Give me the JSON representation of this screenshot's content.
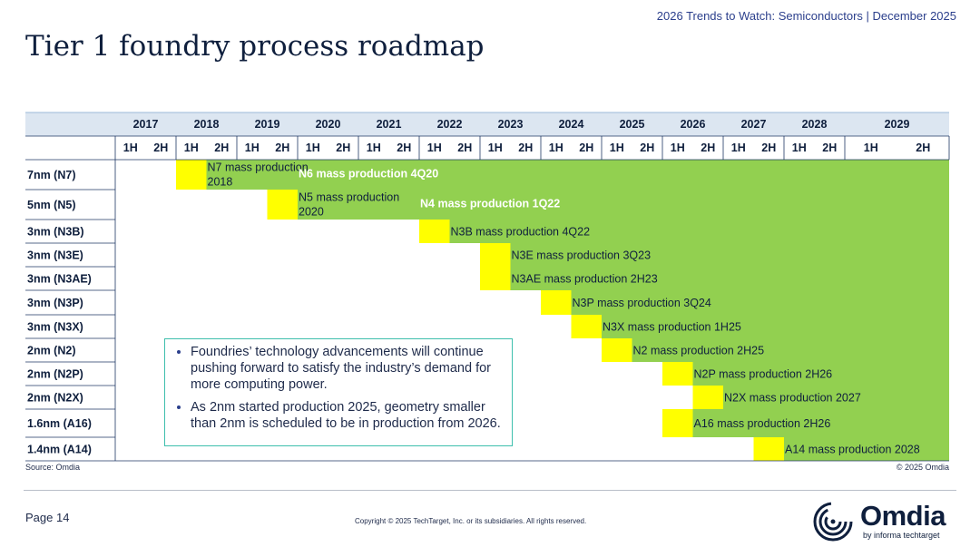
{
  "header": {
    "report_title": "2026 Trends to Watch: Semiconductors | December 2025",
    "slide_title": "Tier 1 foundry process roadmap"
  },
  "chart_data": {
    "type": "gantt",
    "title": "",
    "years": [
      "2017",
      "2018",
      "2019",
      "2020",
      "2021",
      "2022",
      "2023",
      "2024",
      "2025",
      "2026",
      "2027",
      "2028",
      "2029"
    ],
    "halves": [
      "1H",
      "2H"
    ],
    "colors": {
      "lead": "#ffff00",
      "production": "#92d050",
      "header_bg": "#dce6f1",
      "grid": "#1f3864"
    },
    "rows": [
      {
        "label": "7nm (N7)",
        "lead_start": "2018-1H",
        "production_start": "2018-2H",
        "annotations": [
          {
            "text": "N7 mass production",
            "at": "2018-2H",
            "line": 1,
            "color": "#0f1f3d",
            "bold": false
          },
          {
            "text": "2018",
            "at": "2018-2H",
            "line": 2,
            "color": "#0f1f3d",
            "bold": false
          },
          {
            "text": "N6 mass production 4Q20",
            "at": "2020-1H",
            "line": 0,
            "color": "#ffffff",
            "bold": true
          }
        ]
      },
      {
        "label": "5nm (N5)",
        "lead_start": "2019-2H",
        "production_start": "2020-1H",
        "annotations": [
          {
            "text": "N5 mass production",
            "at": "2020-1H",
            "line": 1,
            "color": "#0f1f3d",
            "bold": false
          },
          {
            "text": "2020",
            "at": "2020-1H",
            "line": 2,
            "color": "#0f1f3d",
            "bold": false
          },
          {
            "text": "N4 mass production 1Q22",
            "at": "2022-1H",
            "line": 0,
            "color": "#ffffff",
            "bold": true
          }
        ]
      },
      {
        "label": "3nm (N3B)",
        "lead_start": "2022-1H",
        "production_start": "2022-2H",
        "annotations": [
          {
            "text": "N3B mass production 4Q22",
            "at": "2022-2H",
            "line": 0,
            "color": "#0f1f3d",
            "bold": false
          }
        ]
      },
      {
        "label": "3nm (N3E)",
        "lead_start": "2023-1H",
        "production_start": "2023-2H",
        "annotations": [
          {
            "text": "N3E mass production 3Q23",
            "at": "2023-2H",
            "line": 0,
            "color": "#0f1f3d",
            "bold": false
          }
        ]
      },
      {
        "label": "3nm (N3AE)",
        "lead_start": "2023-1H",
        "production_start": "2023-2H",
        "annotations": [
          {
            "text": "N3AE mass production 2H23",
            "at": "2023-2H",
            "line": 0,
            "color": "#0f1f3d",
            "bold": false
          }
        ]
      },
      {
        "label": "3nm (N3P)",
        "lead_start": "2024-1H",
        "production_start": "2024-2H",
        "annotations": [
          {
            "text": "N3P mass production 3Q24",
            "at": "2024-2H",
            "line": 0,
            "color": "#0f1f3d",
            "bold": false
          }
        ]
      },
      {
        "label": "3nm (N3X)",
        "lead_start": "2024-2H",
        "production_start": "2025-1H",
        "annotations": [
          {
            "text": "N3X mass production 1H25",
            "at": "2025-1H",
            "line": 0,
            "color": "#0f1f3d",
            "bold": false
          }
        ]
      },
      {
        "label": "2nm (N2)",
        "lead_start": "2025-1H",
        "production_start": "2025-2H",
        "annotations": [
          {
            "text": "N2 mass production 2H25",
            "at": "2025-2H",
            "line": 0,
            "color": "#0f1f3d",
            "bold": false
          }
        ]
      },
      {
        "label": "2nm (N2P)",
        "lead_start": "2026-1H",
        "production_start": "2026-2H",
        "annotations": [
          {
            "text": "N2P mass production 2H26",
            "at": "2026-2H",
            "line": 0,
            "color": "#0f1f3d",
            "bold": false
          }
        ]
      },
      {
        "label": "2nm (N2X)",
        "lead_start": "2026-2H",
        "production_start": "2027-1H",
        "annotations": [
          {
            "text": "N2X mass production 2027",
            "at": "2027-1H",
            "line": 0,
            "color": "#0f1f3d",
            "bold": false
          }
        ]
      },
      {
        "label": "1.6nm (A16)",
        "lead_start": "2026-1H",
        "production_start": "2026-2H",
        "annotations": [
          {
            "text": "A16 mass production 2H26",
            "at": "2026-2H",
            "line": 0,
            "color": "#0f1f3d",
            "bold": false
          }
        ]
      },
      {
        "label": "1.4nm (A14)",
        "lead_start": "2027-2H",
        "production_start": "2028-1H",
        "annotations": [
          {
            "text": "A14 mass production 2028",
            "at": "2028-1H",
            "line": 0,
            "color": "#0f1f3d",
            "bold": false
          }
        ]
      }
    ]
  },
  "callout": {
    "bullets": [
      "Foundries’ technology advancements will continue pushing forward to satisfy the industry’s demand for more computing power.",
      "As 2nm started production 2025, geometry smaller than 2nm is scheduled to be in production from 2026."
    ]
  },
  "source": "Source: Omdia",
  "chart_copyright": "© 2025 Omdia",
  "footer": {
    "page": "Page 14",
    "copyright": "Copyright © 2025 TechTarget, Inc. or its subsidiaries. All rights reserved."
  },
  "logo": {
    "wordmark": "Omdia",
    "by_line": "by informa techtarget",
    "icon": "omdia-swirl-icon",
    "colors": {
      "navy": "#0f1f3d"
    }
  }
}
